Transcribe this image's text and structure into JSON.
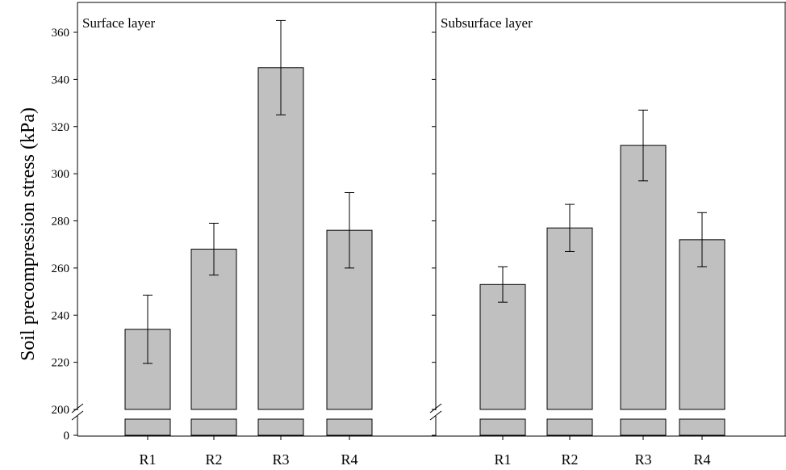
{
  "chart_data": {
    "type": "bar",
    "ylabel": "Soil precompression stress (kPa)",
    "y_axis_break": {
      "lower_tick": 0,
      "upper_start": 200
    },
    "y_ticks": [
      0,
      200,
      220,
      240,
      260,
      280,
      300,
      320,
      340,
      360
    ],
    "ylim": [
      200,
      370
    ],
    "bar_color": "#c0c0c0",
    "panels": [
      {
        "title": "Surface layer",
        "categories": [
          "R1",
          "R2",
          "R3",
          "R4"
        ],
        "values": [
          234,
          268,
          345,
          276
        ],
        "error": [
          14.5,
          11,
          20,
          16
        ]
      },
      {
        "title": "Subsurface layer",
        "categories": [
          "R1",
          "R2",
          "R3",
          "R4"
        ],
        "values": [
          253,
          277,
          312,
          272
        ],
        "error": [
          7.5,
          10,
          15,
          11.5
        ]
      }
    ]
  }
}
